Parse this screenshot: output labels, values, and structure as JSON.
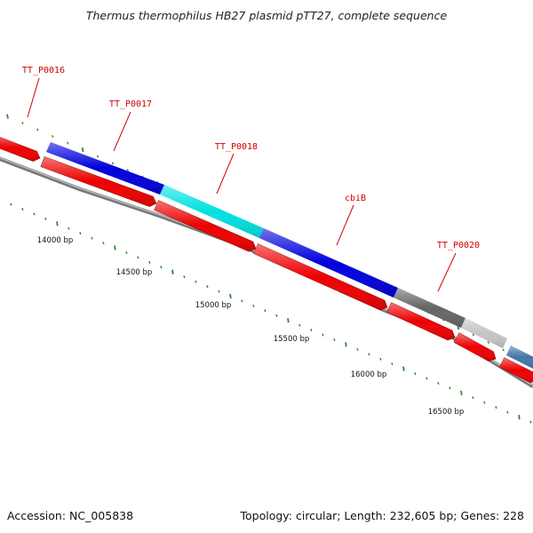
{
  "title": "Thermus thermophilus HB27 plasmid pTT27, complete sequence",
  "footer": {
    "accession": "Accession: NC_005838",
    "summary": "Topology: circular; Length: 232,605 bp; Genes: 228"
  },
  "colors": {
    "label": "#d40000",
    "tick": "#2e8b2e",
    "backbone": "#8a8a8a",
    "reverse": "#ee0000",
    "arrow_outline": "#990000"
  },
  "genes": [
    {
      "label": "TT_P0016",
      "color": "#dd0000"
    },
    {
      "label": "TT_P0017",
      "color": "#0000dd"
    },
    {
      "label": "TT_P0018",
      "color": "#00e0e0"
    },
    {
      "label": "cbiB",
      "color": "#0000dd"
    },
    {
      "label": "TT_P0020",
      "color": "#666666"
    }
  ],
  "extra_forward_colors": [
    "#c4c4c4",
    "#4477aa"
  ],
  "bp_labels": [
    "14000 bp",
    "14500 bp",
    "15000 bp",
    "15500 bp",
    "16000 bp",
    "16500 bp"
  ]
}
